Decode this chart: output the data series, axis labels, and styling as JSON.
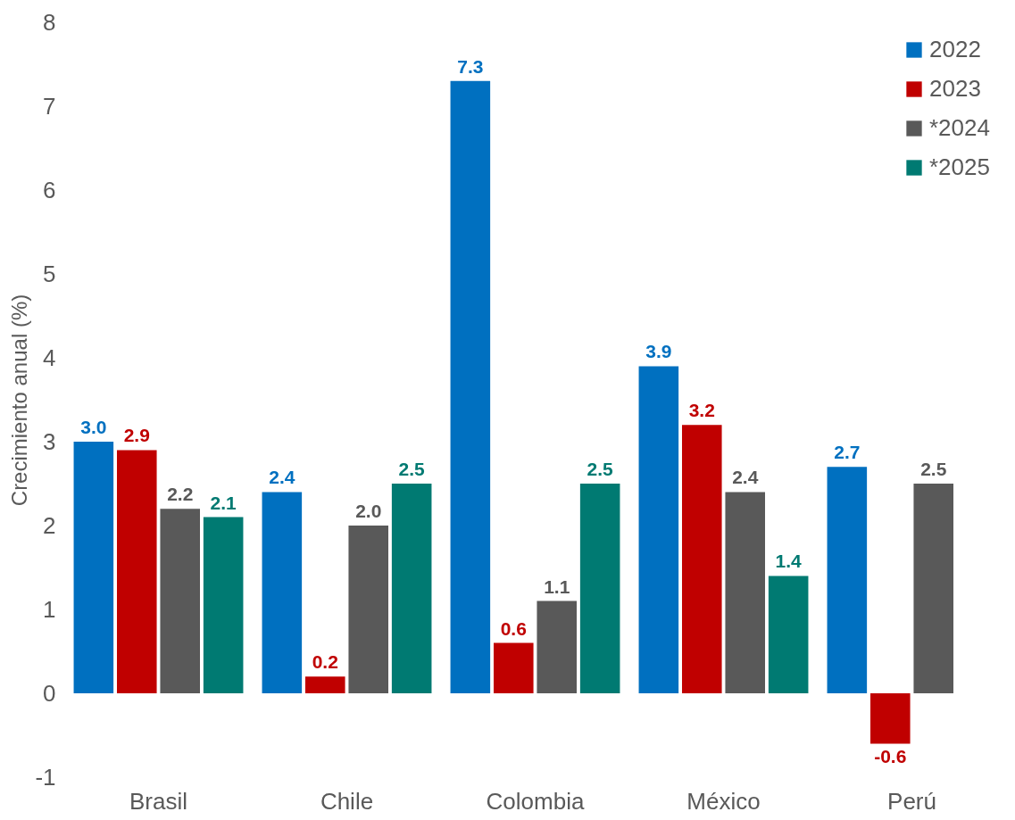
{
  "chart_data": {
    "type": "bar",
    "ylabel": "Crecimiento anual (%)",
    "categories": [
      "Brasil",
      "Chile",
      "Colombia",
      "México",
      "Perú"
    ],
    "series": [
      {
        "name": "2022",
        "color": "#0070c0",
        "values": [
          3.0,
          2.4,
          7.3,
          3.9,
          2.7
        ],
        "value_labels": [
          "3.0",
          "2.4",
          "7.3",
          "3.9",
          "2.7"
        ]
      },
      {
        "name": "2023",
        "color": "#c00000",
        "values": [
          2.9,
          0.2,
          0.6,
          3.2,
          -0.6
        ],
        "value_labels": [
          "2.9",
          "0.2",
          "0.6",
          "3.2",
          "-0.6"
        ]
      },
      {
        "name": "*2024",
        "color": "#595959",
        "values": [
          2.2,
          2.0,
          1.1,
          2.4,
          2.5
        ],
        "value_labels": [
          "2.2",
          "2.0",
          "1.1",
          "2.4",
          "2.5"
        ]
      },
      {
        "name": "*2025",
        "color": "#007a72",
        "values": [
          2.1,
          2.5,
          2.5,
          1.4,
          null
        ],
        "value_labels": [
          "2.1",
          "2.5",
          "2.5",
          "1.4",
          null
        ]
      }
    ],
    "ylim": [
      -1,
      8
    ],
    "yticks": [
      -1,
      0,
      1,
      2,
      3,
      4,
      5,
      6,
      7,
      8
    ],
    "grid": false,
    "legend": "top right"
  }
}
